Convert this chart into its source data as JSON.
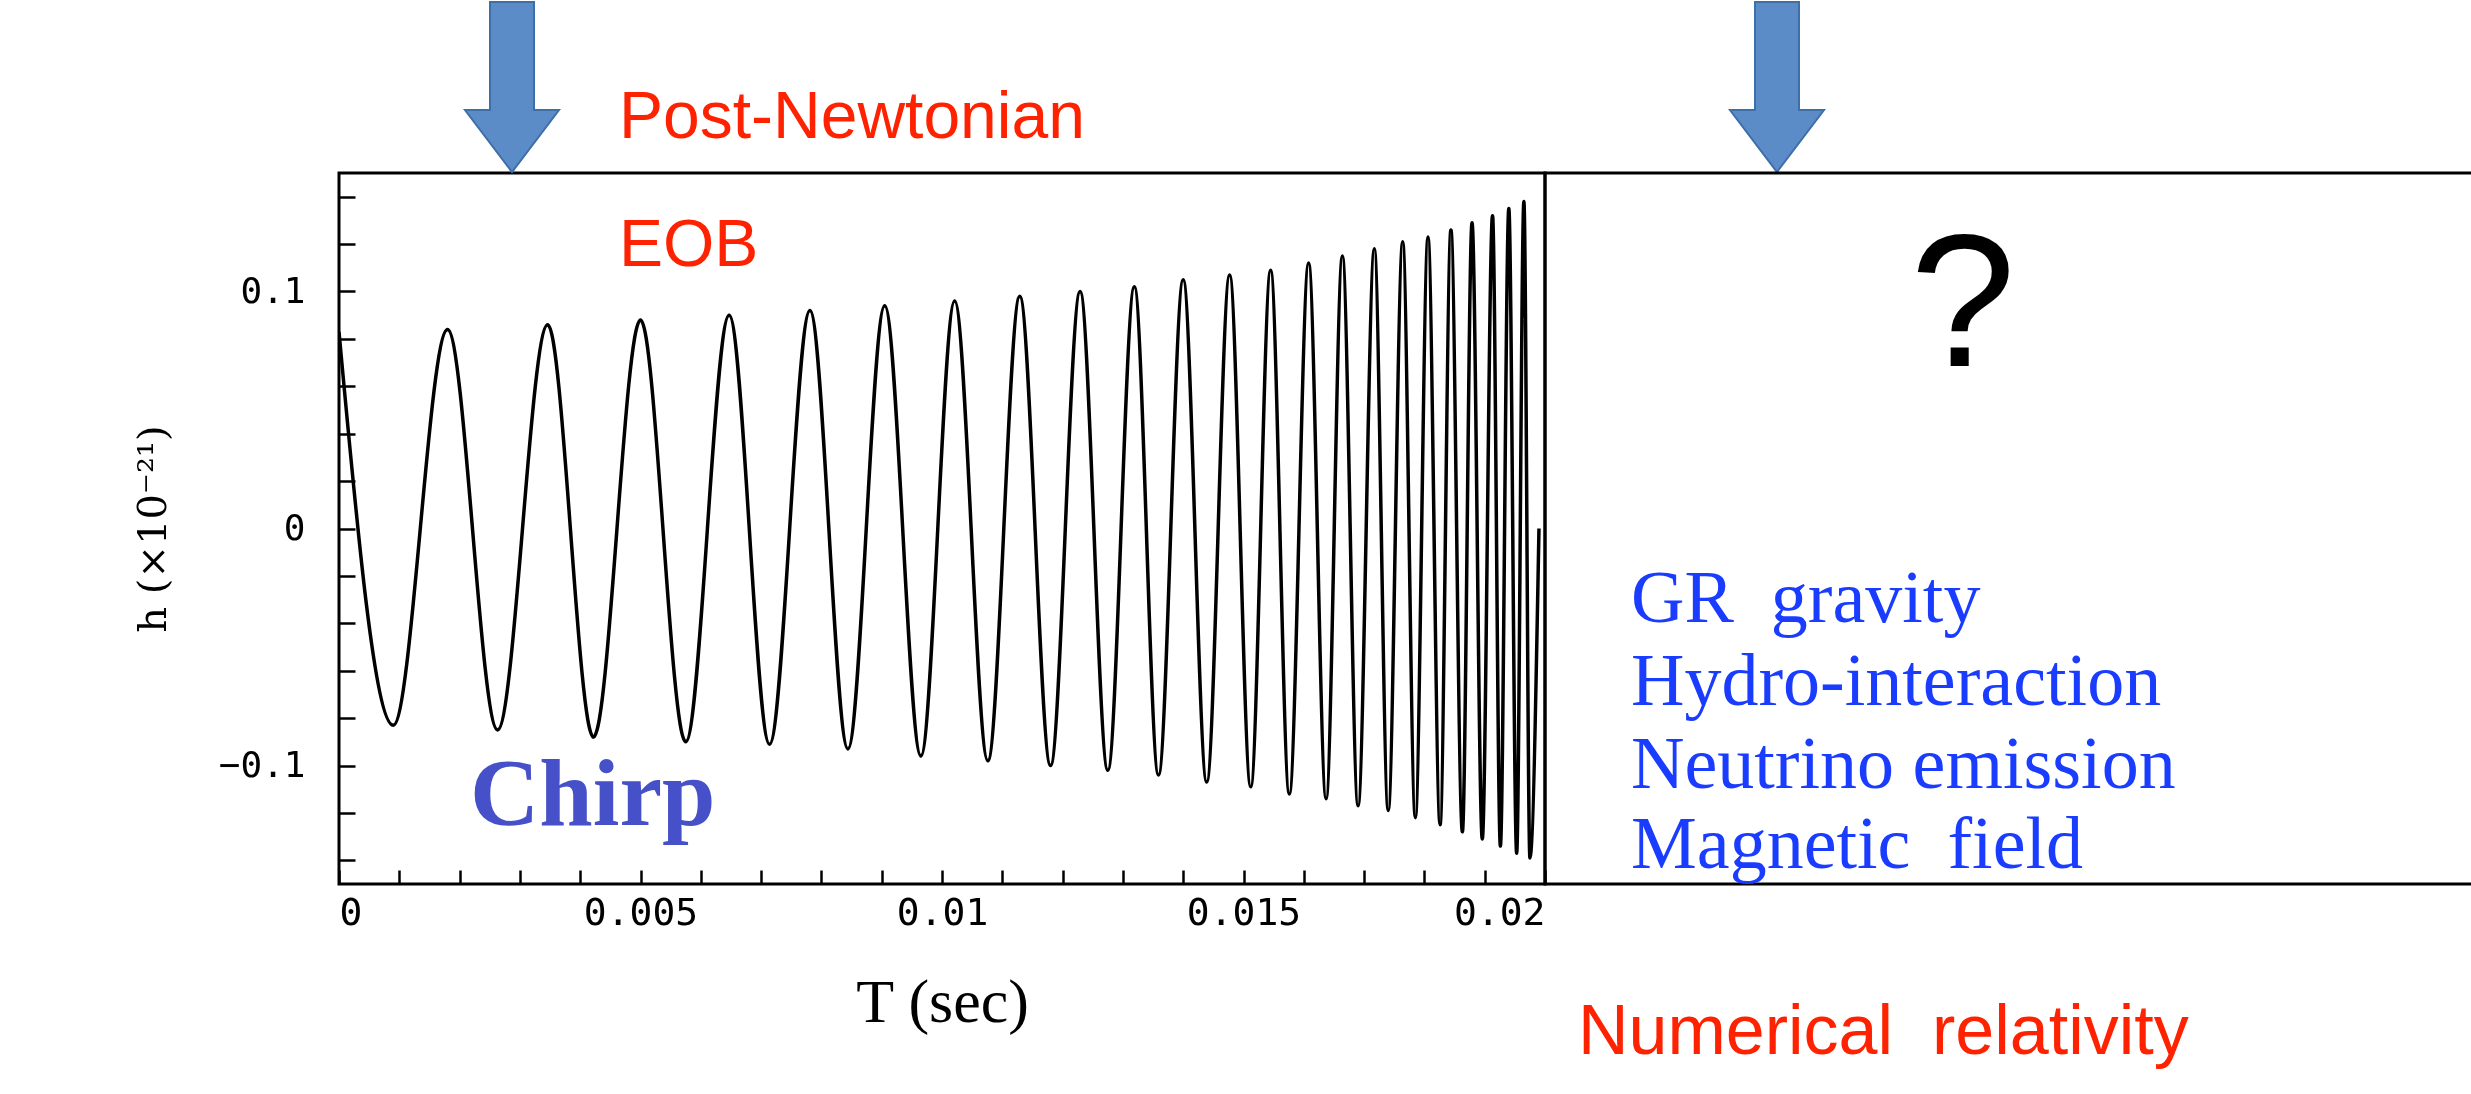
{
  "chart_data": {
    "type": "line",
    "xlabel": "T (sec)",
    "ylabel": "h (×10⁻²¹)",
    "x": [
      0,
      0.0009,
      0.0018,
      0.00263,
      0.00346,
      0.00422,
      0.005,
      0.00575,
      0.00647,
      0.00714,
      0.00781,
      0.00844,
      0.00905,
      0.00965,
      0.01021,
      0.01076,
      0.01129,
      0.0118,
      0.01229,
      0.01275,
      0.01319,
      0.01359,
      0.014,
      0.01439,
      0.01477,
      0.01512,
      0.01545,
      0.01576,
      0.01608,
      0.01637,
      0.01664,
      0.0169,
      0.01717,
      0.0174,
      0.01764,
      0.01785,
      0.01806,
      0.01826,
      0.01844,
      0.01863,
      0.01879,
      0.01896,
      0.01913,
      0.01926,
      0.0194,
      0.01953,
      0.01965,
      0.01975,
      0.0199
    ],
    "series": [
      {
        "color": "#000000",
        "values": [
          0.083,
          -0.083,
          0.084,
          -0.085,
          0.086,
          -0.088,
          0.088,
          -0.09,
          0.09,
          -0.091,
          0.092,
          -0.093,
          0.094,
          -0.096,
          0.096,
          -0.098,
          0.098,
          -0.1,
          0.1,
          -0.102,
          0.102,
          -0.104,
          0.105,
          -0.107,
          0.107,
          -0.109,
          0.109,
          -0.112,
          0.112,
          -0.114,
          0.115,
          -0.117,
          0.118,
          -0.119,
          0.121,
          -0.122,
          0.123,
          -0.125,
          0.126,
          -0.128,
          0.129,
          -0.131,
          0.132,
          -0.134,
          0.135,
          -0.137,
          0.138,
          -0.139,
          0
        ]
      }
    ],
    "xlim": [
      0,
      0.02
    ],
    "ylim": [
      -0.15,
      0.15
    ],
    "xticks": [
      0,
      {
        "value": 0.001,
        "label": null
      },
      {
        "value": 0.002,
        "label": null
      },
      {
        "value": 0.003,
        "label": null
      },
      {
        "value": 0.004,
        "label": null
      },
      0.005,
      {
        "value": 0.006,
        "label": null
      },
      {
        "value": 0.007,
        "label": null
      },
      {
        "value": 0.008,
        "label": null
      },
      {
        "value": 0.009,
        "label": null
      },
      0.01,
      {
        "value": 0.011,
        "label": null
      },
      {
        "value": 0.012,
        "label": null
      },
      {
        "value": 0.013,
        "label": null
      },
      {
        "value": 0.014,
        "label": null
      },
      0.015,
      {
        "value": 0.016,
        "label": null
      },
      {
        "value": 0.017,
        "label": null
      },
      {
        "value": 0.018,
        "label": null
      },
      {
        "value": 0.019,
        "label": null
      },
      0.02
    ],
    "yticks": [
      {
        "value": -0.14,
        "label": null
      },
      {
        "value": -0.12,
        "label": null
      },
      {
        "value": -0.1,
        "label": "−0.1"
      },
      {
        "value": -0.08,
        "label": null
      },
      {
        "value": -0.06,
        "label": null
      },
      {
        "value": -0.04,
        "label": null
      },
      {
        "value": -0.02,
        "label": null
      },
      0,
      {
        "value": 0.02,
        "label": null
      },
      {
        "value": 0.04,
        "label": null
      },
      {
        "value": 0.06,
        "label": null
      },
      {
        "value": 0.08,
        "label": null
      },
      0.1,
      {
        "value": 0.12,
        "label": null
      },
      {
        "value": 0.14,
        "label": null
      }
    ],
    "annotations": [
      "Post-Newtonian",
      "EOB",
      "Chirp",
      "?",
      "GR  gravity",
      "Hydro-interaction",
      "Neutrino emission",
      "Magnetic  field",
      "Numerical  relativity"
    ]
  }
}
